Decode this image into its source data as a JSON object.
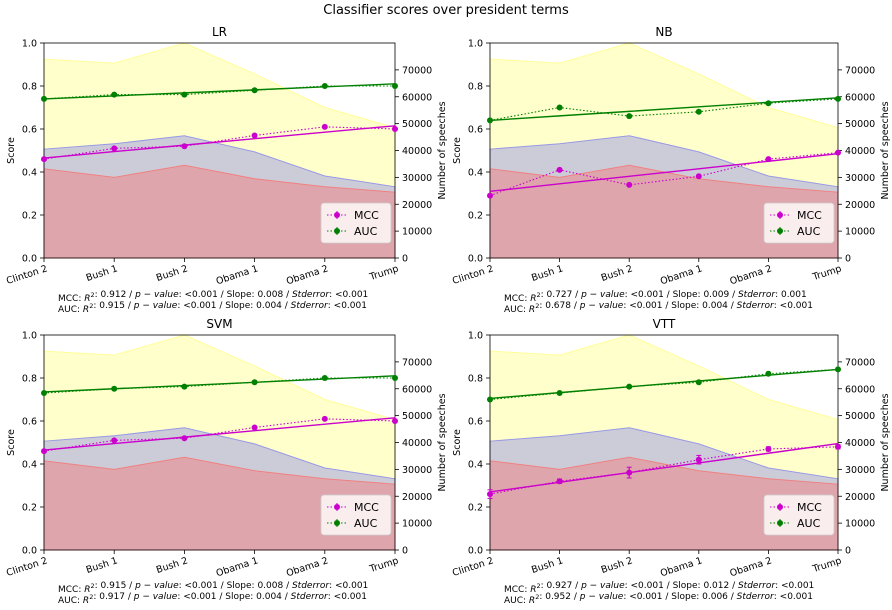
{
  "figure": {
    "suptitle": "Classifier scores over president terms"
  },
  "chart_data": [
    {
      "type": "line",
      "title": "LR",
      "categories": [
        "Clinton 2",
        "Bush 1",
        "Bush 2",
        "Obama 1",
        "Obama 2",
        "Trump"
      ],
      "ylabel": "Score",
      "y2label": "Number of speeches",
      "ylim": [
        0,
        1.0
      ],
      "y2lim": [
        0,
        80000
      ],
      "yticks": [
        "0.0",
        "0.2",
        "0.4",
        "0.6",
        "0.8",
        "1.0"
      ],
      "y2ticks": [
        "0",
        "10000",
        "20000",
        "30000",
        "40000",
        "50000",
        "60000",
        "70000"
      ],
      "legend": {
        "position": "lower-right",
        "entries": [
          "MCC",
          "AUC"
        ]
      },
      "series": [
        {
          "name": "MCC",
          "color": "#cc00cc",
          "values": [
            0.46,
            0.51,
            0.52,
            0.57,
            0.61,
            0.6
          ],
          "fit": [
            0.465,
            0.495,
            0.525,
            0.555,
            0.585,
            0.615
          ],
          "err": [
            0.005,
            0.005,
            0.005,
            0.005,
            0.005,
            0.005
          ]
        },
        {
          "name": "AUC",
          "color": "#008000",
          "values": [
            0.74,
            0.76,
            0.76,
            0.78,
            0.8,
            0.8
          ],
          "fit": [
            0.74,
            0.754,
            0.768,
            0.782,
            0.796,
            0.81
          ],
          "err": [
            0.005,
            0.005,
            0.005,
            0.005,
            0.005,
            0.005
          ]
        }
      ],
      "areas": [
        {
          "color": "#ffff99",
          "values": [
            74000,
            72500,
            80000,
            68500,
            56000,
            48500
          ]
        },
        {
          "color": "#9999e6",
          "values": [
            40500,
            42500,
            45500,
            39500,
            30500,
            26500
          ]
        },
        {
          "color": "#f08080",
          "values": [
            33200,
            30000,
            34500,
            29500,
            26500,
            24500
          ]
        }
      ],
      "stats": [
        {
          "prefix": "MCC: ",
          "r2": "0.912",
          "p": "<0.001",
          "slope": "0.008",
          "stderr": "<0.001"
        },
        {
          "prefix": "AUC: ",
          "r2": "0.915",
          "p": "<0.001",
          "slope": "0.004",
          "stderr": "<0.001"
        }
      ]
    },
    {
      "type": "line",
      "title": "NB",
      "categories": [
        "Clinton 2",
        "Bush 1",
        "Bush 2",
        "Obama 1",
        "Obama 2",
        "Trump"
      ],
      "ylabel": "Score",
      "y2label": "Number of speeches",
      "ylim": [
        0,
        1.0
      ],
      "y2lim": [
        0,
        80000
      ],
      "yticks": [
        "0.0",
        "0.2",
        "0.4",
        "0.6",
        "0.8",
        "1.0"
      ],
      "y2ticks": [
        "0",
        "10000",
        "20000",
        "30000",
        "40000",
        "50000",
        "60000",
        "70000"
      ],
      "legend": {
        "position": "lower-right",
        "entries": [
          "MCC",
          "AUC"
        ]
      },
      "series": [
        {
          "name": "MCC",
          "color": "#cc00cc",
          "values": [
            0.29,
            0.41,
            0.34,
            0.38,
            0.46,
            0.49
          ],
          "fit": [
            0.31,
            0.345,
            0.38,
            0.415,
            0.45,
            0.485
          ],
          "err": [
            0.005,
            0.005,
            0.005,
            0.005,
            0.005,
            0.005
          ]
        },
        {
          "name": "AUC",
          "color": "#008000",
          "values": [
            0.64,
            0.7,
            0.66,
            0.68,
            0.72,
            0.74
          ],
          "fit": [
            0.64,
            0.661,
            0.682,
            0.703,
            0.724,
            0.745
          ],
          "err": [
            0.005,
            0.005,
            0.005,
            0.005,
            0.005,
            0.005
          ]
        }
      ],
      "areas": [
        {
          "color": "#ffff99",
          "values": [
            74000,
            72500,
            80000,
            68500,
            56000,
            48500
          ]
        },
        {
          "color": "#9999e6",
          "values": [
            40500,
            42500,
            45500,
            39500,
            30500,
            26500
          ]
        },
        {
          "color": "#f08080",
          "values": [
            33200,
            30000,
            34500,
            29500,
            26500,
            24500
          ]
        }
      ],
      "stats": [
        {
          "prefix": "MCC: ",
          "r2": "0.727",
          "p": "<0.001",
          "slope": "0.009",
          "stderr": "0.001"
        },
        {
          "prefix": "AUC: ",
          "r2": "0.678",
          "p": "<0.001",
          "slope": "0.004",
          "stderr": "<0.001"
        }
      ]
    },
    {
      "type": "line",
      "title": "SVM",
      "categories": [
        "Clinton 2",
        "Bush 1",
        "Bush 2",
        "Obama 1",
        "Obama 2",
        "Trump"
      ],
      "ylabel": "Score",
      "y2label": "Number of speeches",
      "ylim": [
        0,
        1.0
      ],
      "y2lim": [
        0,
        80000
      ],
      "yticks": [
        "0.0",
        "0.2",
        "0.4",
        "0.6",
        "0.8",
        "1.0"
      ],
      "y2ticks": [
        "0",
        "10000",
        "20000",
        "30000",
        "40000",
        "50000",
        "60000",
        "70000"
      ],
      "legend": {
        "position": "lower-right",
        "entries": [
          "MCC",
          "AUC"
        ]
      },
      "series": [
        {
          "name": "MCC",
          "color": "#cc00cc",
          "values": [
            0.46,
            0.51,
            0.52,
            0.57,
            0.61,
            0.6
          ],
          "fit": [
            0.465,
            0.495,
            0.525,
            0.555,
            0.585,
            0.615
          ],
          "err": [
            0.005,
            0.005,
            0.005,
            0.005,
            0.005,
            0.005
          ]
        },
        {
          "name": "AUC",
          "color": "#008000",
          "values": [
            0.73,
            0.75,
            0.76,
            0.78,
            0.8,
            0.8
          ],
          "fit": [
            0.735,
            0.75,
            0.765,
            0.78,
            0.795,
            0.81
          ],
          "err": [
            0.005,
            0.005,
            0.005,
            0.005,
            0.005,
            0.005
          ]
        }
      ],
      "areas": [
        {
          "color": "#ffff99",
          "values": [
            74000,
            72500,
            80000,
            68500,
            56000,
            48500
          ]
        },
        {
          "color": "#9999e6",
          "values": [
            40500,
            42500,
            45500,
            39500,
            30500,
            26500
          ]
        },
        {
          "color": "#f08080",
          "values": [
            33200,
            30000,
            34500,
            29500,
            26500,
            24500
          ]
        }
      ],
      "stats": [
        {
          "prefix": "MCC: ",
          "r2": "0.915",
          "p": "<0.001",
          "slope": "0.008",
          "stderr": "<0.001"
        },
        {
          "prefix": "AUC: ",
          "r2": "0.917",
          "p": "<0.001",
          "slope": "0.004",
          "stderr": "<0.001"
        }
      ]
    },
    {
      "type": "line",
      "title": "VTT",
      "categories": [
        "Clinton 2",
        "Bush 1",
        "Bush 2",
        "Obama 1",
        "Obama 2",
        "Trump"
      ],
      "ylabel": "Score",
      "y2label": "Number of speeches",
      "ylim": [
        0,
        1.0
      ],
      "y2lim": [
        0,
        80000
      ],
      "yticks": [
        "0.0",
        "0.2",
        "0.4",
        "0.6",
        "0.8",
        "1.0"
      ],
      "y2ticks": [
        "0",
        "10000",
        "20000",
        "30000",
        "40000",
        "50000",
        "60000",
        "70000"
      ],
      "legend": {
        "position": "lower-right",
        "entries": [
          "MCC",
          "AUC"
        ]
      },
      "series": [
        {
          "name": "MCC",
          "color": "#cc00cc",
          "values": [
            0.26,
            0.32,
            0.36,
            0.42,
            0.47,
            0.48
          ],
          "fit": [
            0.27,
            0.315,
            0.36,
            0.405,
            0.45,
            0.495
          ],
          "err": [
            0.02,
            0.01,
            0.025,
            0.02,
            0.01,
            0.01
          ]
        },
        {
          "name": "AUC",
          "color": "#008000",
          "values": [
            0.7,
            0.73,
            0.76,
            0.78,
            0.82,
            0.84
          ],
          "fit": [
            0.705,
            0.732,
            0.759,
            0.786,
            0.813,
            0.84
          ],
          "err": [
            0.005,
            0.005,
            0.005,
            0.005,
            0.005,
            0.005
          ]
        }
      ],
      "areas": [
        {
          "color": "#ffff99",
          "values": [
            74000,
            72500,
            80000,
            68500,
            56000,
            48500
          ]
        },
        {
          "color": "#9999e6",
          "values": [
            40500,
            42500,
            45500,
            39500,
            30500,
            26500
          ]
        },
        {
          "color": "#f08080",
          "values": [
            33200,
            30000,
            34500,
            29500,
            26500,
            24500
          ]
        }
      ],
      "stats": [
        {
          "prefix": "MCC: ",
          "r2": "0.927",
          "p": "<0.001",
          "slope": "0.012",
          "stderr": "<0.001"
        },
        {
          "prefix": "AUC: ",
          "r2": "0.952",
          "p": "<0.001",
          "slope": "0.006",
          "stderr": "<0.001"
        }
      ]
    }
  ]
}
